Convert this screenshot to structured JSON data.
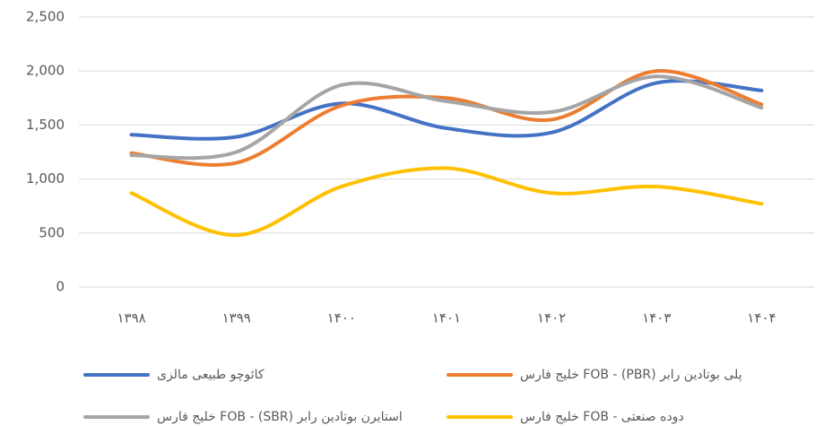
{
  "chart_data": {
    "type": "line",
    "categories": [
      "۱۳۹۸",
      "۱۳۹۹",
      "۱۴۰۰",
      "۱۴۰۱",
      "۱۴۰۲",
      "۱۴۰۳",
      "۱۴۰۴"
    ],
    "series": [
      {
        "name": "کائوچو طبیعی مالزی",
        "color": "#4472c4",
        "values": [
          1410,
          1390,
          1700,
          1470,
          1430,
          1890,
          1820
        ]
      },
      {
        "name": "پلی بوتادین رابر (PBR) - FOB خلیج فارس",
        "color": "#ed7d31",
        "values": [
          1240,
          1150,
          1680,
          1750,
          1550,
          2000,
          1690
        ]
      },
      {
        "name": "استایرن بوتادین رابر (SBR) - FOB خلیج فارس",
        "color": "#a5a5a5",
        "values": [
          1220,
          1250,
          1870,
          1720,
          1620,
          1950,
          1660
        ]
      },
      {
        "name": "دوده صنعتی - FOB خلیج فارس",
        "color": "#ffc000",
        "values": [
          870,
          480,
          930,
          1100,
          870,
          930,
          770
        ]
      }
    ],
    "ylim": [
      0,
      2500
    ],
    "yticks": [
      0,
      500,
      {
        "value": 1000,
        "label": "1,000"
      },
      {
        "value": 1500,
        "label": "1,500"
      },
      {
        "value": 2000,
        "label": "2,000"
      },
      {
        "value": 2500,
        "label": "2,500"
      }
    ],
    "grid": true,
    "legend": "bottom"
  }
}
